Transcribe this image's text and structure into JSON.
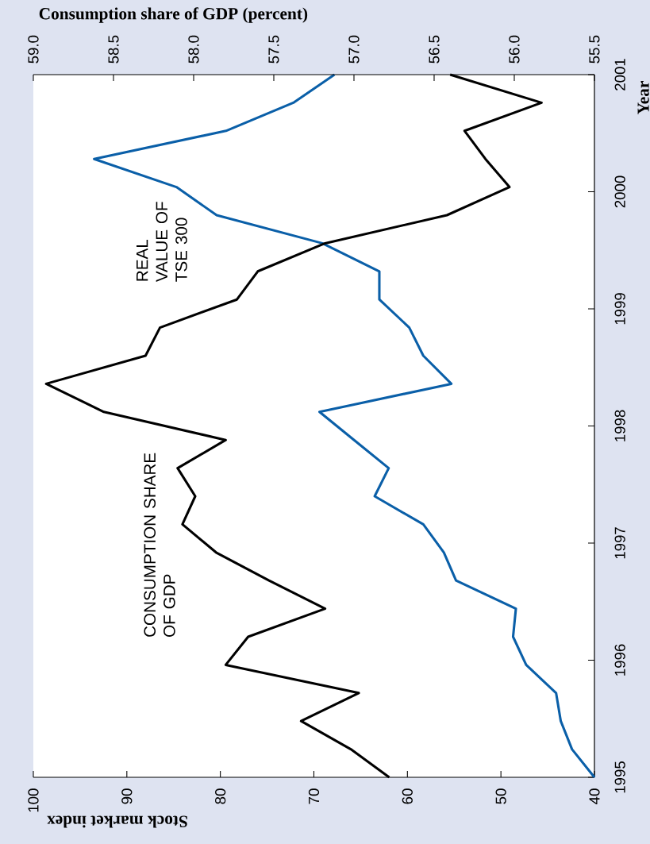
{
  "chart_data": {
    "type": "line",
    "xlabel": "Stock market index",
    "ylabel": "Year",
    "x2label": "Consumption share of GDP (percent)",
    "series": [
      {
        "name": "REAL VALUE OF TSE 300",
        "color": "#0a5fa8",
        "x": [
          40.0,
          42.4,
          43.6,
          44.1,
          47.3,
          48.7,
          48.4,
          54.8,
          56.1,
          58.3,
          63.5,
          62.0,
          65.7,
          69.4,
          55.3,
          58.3,
          59.8,
          63.0,
          63.0,
          69.1,
          80.4,
          84.7,
          93.5,
          79.4,
          72.2,
          67.8
        ],
        "values": [
          1995,
          1995.24,
          1995.48,
          1995.72,
          1995.96,
          1996.2,
          1996.44,
          1996.68,
          1996.92,
          1997.16,
          1997.4,
          1997.64,
          1997.88,
          1998.12,
          1998.36,
          1998.6,
          1998.84,
          1999.08,
          1999.32,
          1999.56,
          1999.8,
          2000.04,
          2000.28,
          2000.52,
          2000.76,
          2001
        ]
      },
      {
        "name": "CONSUMPTION SHARE OF GDP",
        "color": "#000000",
        "axis": "x2",
        "x": [
          56.78,
          57.02,
          57.33,
          56.97,
          57.8,
          57.66,
          57.18,
          57.53,
          57.86,
          58.07,
          57.99,
          58.1,
          57.8,
          58.56,
          58.92,
          58.3,
          58.21,
          57.73,
          57.6,
          57.18,
          56.42,
          56.03,
          56.18,
          56.31,
          55.83,
          56.4
        ],
        "values": [
          1995,
          1995.24,
          1995.48,
          1995.72,
          1995.96,
          1996.2,
          1996.44,
          1996.68,
          1996.92,
          1997.16,
          1997.4,
          1997.64,
          1997.88,
          1998.12,
          1998.36,
          1998.6,
          1998.84,
          1999.08,
          1999.32,
          1999.56,
          1999.8,
          2000.04,
          2000.28,
          2000.52,
          2000.76,
          2001
        ]
      }
    ],
    "xlim": [
      100,
      40
    ],
    "xticks": [
      100,
      90,
      80,
      70,
      60,
      50,
      40
    ],
    "ylim": [
      1995,
      2001
    ],
    "yticks": [
      1995,
      1996,
      1997,
      1998,
      1999,
      2000,
      2001
    ],
    "x2lim": [
      59.0,
      55.5
    ],
    "x2ticks": [
      {
        "value": 59.0,
        "label": "59.0"
      },
      {
        "value": 58.5,
        "label": "58.5"
      },
      {
        "value": 58.0,
        "label": "58.0"
      },
      {
        "value": 57.5,
        "label": "57.5"
      },
      {
        "value": 57.0,
        "label": "57.0"
      },
      {
        "value": 56.5,
        "label": "56.5"
      },
      {
        "value": 56.0,
        "label": "56.0"
      },
      {
        "value": 55.5,
        "label": "55.5"
      }
    ],
    "marker": "none",
    "line_style": "solid"
  }
}
